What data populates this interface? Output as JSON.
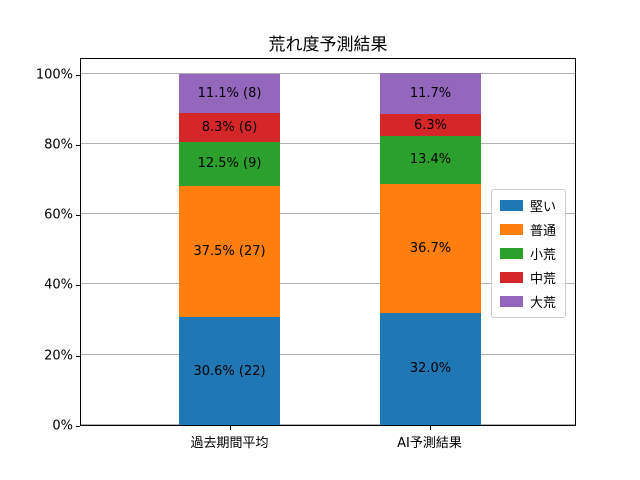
{
  "chart_data": {
    "type": "bar",
    "stacked": true,
    "title": "荒れ度予測結果",
    "categories": [
      "過去期間平均",
      "AI予測結果"
    ],
    "series": [
      {
        "name": "堅い",
        "color": "#1f77b4",
        "values": [
          30.6,
          32.0
        ],
        "labels": [
          "30.6% (22)",
          "32.0%"
        ]
      },
      {
        "name": "普通",
        "color": "#ff7f0e",
        "values": [
          37.5,
          36.7
        ],
        "labels": [
          "37.5% (27)",
          "36.7%"
        ]
      },
      {
        "name": "小荒",
        "color": "#2ca02c",
        "values": [
          12.5,
          13.4
        ],
        "labels": [
          "12.5% (9)",
          "13.4%"
        ]
      },
      {
        "name": "中荒",
        "color": "#d62728",
        "values": [
          8.3,
          6.3
        ],
        "labels": [
          "8.3% (6)",
          "6.3%"
        ]
      },
      {
        "name": "大荒",
        "color": "#9467bd",
        "values": [
          11.1,
          11.7
        ],
        "labels": [
          "11.1% (8)",
          "11.7%"
        ]
      }
    ],
    "yticks": [
      0,
      20,
      40,
      60,
      80,
      100
    ],
    "ytick_labels": [
      "0%",
      "20%",
      "40%",
      "60%",
      "80%",
      "100%"
    ],
    "ylim": [
      0,
      100
    ],
    "grid": true,
    "legend_position": "right"
  }
}
